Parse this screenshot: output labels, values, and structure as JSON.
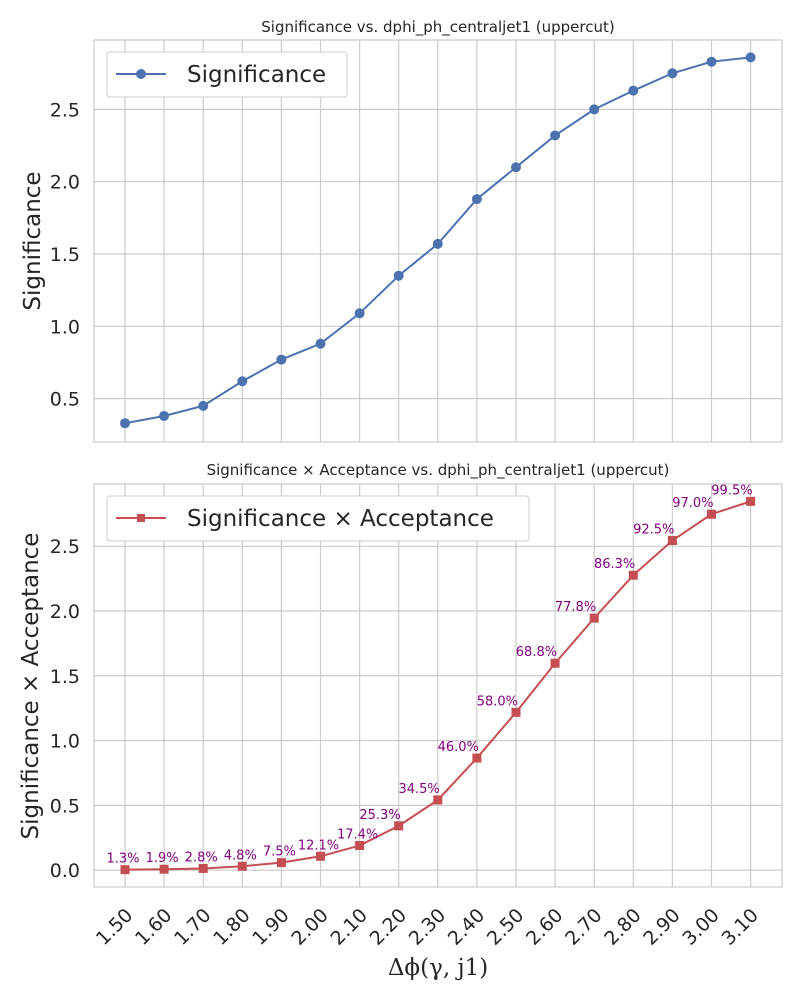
{
  "chart_data": [
    {
      "type": "line",
      "title": "Significance vs. dphi_ph_centraljet1 (uppercut)",
      "xlabel": "",
      "ylabel": "Significance",
      "categories": [
        "1.50",
        "1.60",
        "1.70",
        "1.80",
        "1.90",
        "2.00",
        "2.10",
        "2.20",
        "2.30",
        "2.40",
        "2.50",
        "2.60",
        "2.70",
        "2.80",
        "2.90",
        "3.00",
        "3.10"
      ],
      "y_ticks": [
        "0.5",
        "1.0",
        "1.5",
        "2.0",
        "2.5"
      ],
      "ylim": [
        0.2,
        2.98
      ],
      "grid": true,
      "legend_position": "upper-left",
      "series": [
        {
          "name": "Significance",
          "marker": "circle",
          "color": "#4c72b0",
          "values": [
            0.33,
            0.38,
            0.45,
            0.62,
            0.77,
            0.88,
            1.09,
            1.35,
            1.57,
            1.88,
            2.1,
            2.32,
            2.5,
            2.63,
            2.75,
            2.83,
            2.86
          ]
        }
      ]
    },
    {
      "type": "line",
      "title": "Significance × Acceptance vs. dphi_ph_centraljet1 (uppercut)",
      "xlabel": "Δϕ(γ, j1)",
      "ylabel": "Significance × Acceptance",
      "categories": [
        "1.50",
        "1.60",
        "1.70",
        "1.80",
        "1.90",
        "2.00",
        "2.10",
        "2.20",
        "2.30",
        "2.40",
        "2.50",
        "2.60",
        "2.70",
        "2.80",
        "2.90",
        "3.00",
        "3.10"
      ],
      "y_ticks": [
        "0.0",
        "0.5",
        "1.0",
        "1.5",
        "2.0",
        "2.5"
      ],
      "ylim": [
        -0.13,
        2.98
      ],
      "grid": true,
      "legend_position": "upper-left",
      "annotation_color": "#800080",
      "series": [
        {
          "name": "Significance × Acceptance",
          "marker": "square",
          "color": "#c44e52",
          "values": [
            0.004,
            0.007,
            0.013,
            0.03,
            0.058,
            0.107,
            0.19,
            0.342,
            0.542,
            0.865,
            1.218,
            1.597,
            1.945,
            2.276,
            2.544,
            2.747,
            2.846
          ]
        }
      ],
      "annotations": [
        "1.3%",
        "1.9%",
        "2.8%",
        "4.8%",
        "7.5%",
        "12.1%",
        "17.4%",
        "25.3%",
        "34.5%",
        "46.0%",
        "58.0%",
        "68.8%",
        "77.8%",
        "86.3%",
        "92.5%",
        "97.0%",
        "99.5%"
      ]
    }
  ]
}
